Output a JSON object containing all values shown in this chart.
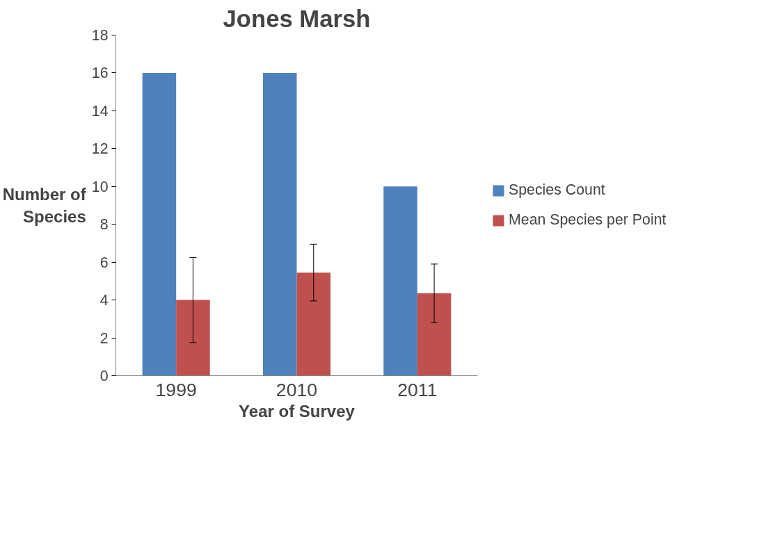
{
  "chart_data": {
    "type": "bar",
    "title": "Jones Marsh",
    "xlabel": "Year of Survey",
    "ylabel": "Number of Species",
    "categories": [
      "1999",
      "2010",
      "2011"
    ],
    "series": [
      {
        "name": "Species Count",
        "color": "#4f81bd",
        "values": [
          16,
          16,
          10
        ]
      },
      {
        "name": "Mean Species per Point",
        "color": "#c0504d",
        "values": [
          4,
          5.45,
          4.35
        ],
        "errors": [
          2.25,
          1.5,
          1.55
        ]
      }
    ],
    "ylim": [
      0,
      18
    ],
    "yticks": [
      0,
      2,
      4,
      6,
      8,
      10,
      12,
      14,
      16,
      18
    ],
    "grid": false,
    "legend": "right"
  }
}
